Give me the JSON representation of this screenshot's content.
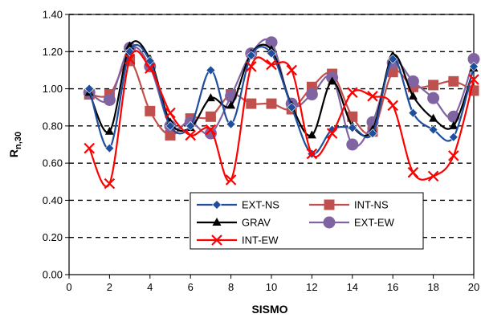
{
  "chart_data": {
    "type": "line",
    "title": "",
    "xlabel": "SISMO",
    "ylabel_main": "R",
    "ylabel_sub": "n,30",
    "xlim": [
      0,
      20
    ],
    "ylim": [
      0,
      1.4
    ],
    "x_ticks": [
      "0",
      "2",
      "4",
      "6",
      "8",
      "10",
      "12",
      "14",
      "16",
      "18",
      "20"
    ],
    "y_ticks": [
      "0.00",
      "0.20",
      "0.40",
      "0.60",
      "0.80",
      "1.00",
      "1.20",
      "1.40"
    ],
    "grid": "horizontal dashed",
    "legend_position": "bottom-center",
    "x": [
      1,
      2,
      3,
      4,
      5,
      6,
      7,
      8,
      9,
      10,
      11,
      12,
      13,
      14,
      15,
      16,
      17,
      18,
      19,
      20
    ],
    "series": [
      {
        "name": "EXT-NS",
        "color": "#1f4e9c",
        "marker": "diamond",
        "values": [
          1.0,
          0.68,
          1.2,
          1.15,
          0.8,
          0.8,
          1.1,
          0.81,
          1.18,
          1.19,
          0.9,
          0.65,
          0.78,
          0.79,
          0.76,
          1.16,
          0.87,
          0.78,
          0.74,
          1.12
        ]
      },
      {
        "name": "INT-NS",
        "color": "#c0504d",
        "marker": "square",
        "values": [
          0.97,
          0.97,
          1.15,
          0.88,
          0.75,
          0.84,
          0.85,
          0.97,
          0.92,
          0.92,
          0.89,
          1.01,
          1.08,
          0.85,
          0.77,
          1.09,
          1.01,
          1.02,
          1.04,
          0.99
        ]
      },
      {
        "name": "GRAV",
        "color": "#000000",
        "marker": "triangle",
        "values": [
          0.98,
          0.77,
          1.23,
          1.16,
          0.82,
          0.79,
          0.95,
          0.91,
          1.19,
          1.21,
          0.91,
          0.75,
          1.04,
          0.8,
          0.78,
          1.18,
          0.96,
          0.84,
          0.8,
          1.11
        ]
      },
      {
        "name": "EXT-EW",
        "color": "#8064a2",
        "marker": "circle",
        "values": [
          0.98,
          0.94,
          1.22,
          1.12,
          0.8,
          0.82,
          0.76,
          0.96,
          1.19,
          1.25,
          0.92,
          0.97,
          1.06,
          0.7,
          0.82,
          1.14,
          1.04,
          0.95,
          0.85,
          1.16
        ]
      },
      {
        "name": "INT-EW",
        "color": "#ff0000",
        "marker": "x",
        "values": [
          0.68,
          0.49,
          1.16,
          1.11,
          0.87,
          0.75,
          0.78,
          0.51,
          1.12,
          1.13,
          1.1,
          0.65,
          0.76,
          0.98,
          0.96,
          0.91,
          0.55,
          0.53,
          0.64,
          1.05
        ]
      }
    ]
  }
}
